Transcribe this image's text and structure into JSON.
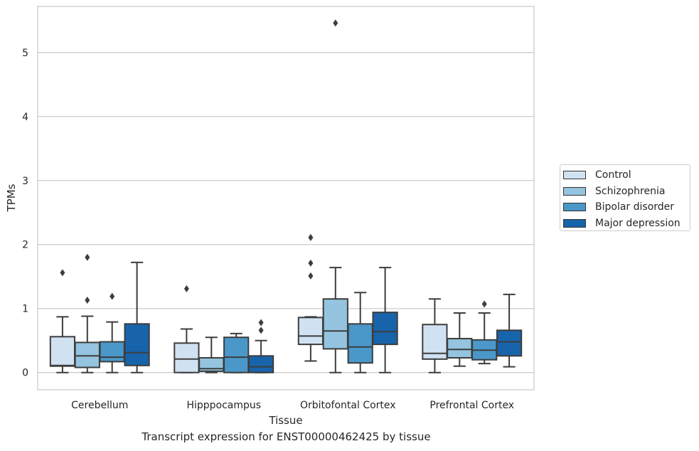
{
  "chart_data": {
    "type": "box",
    "caption": "Transcript expression for ENST00000462425 by tissue",
    "xlabel": "Tissue",
    "ylabel": "TPMs",
    "ylim": [
      -0.27,
      5.72
    ],
    "yticks": [
      0,
      1,
      2,
      3,
      4,
      5
    ],
    "ytick_labels": [
      "0",
      "1",
      "2",
      "3",
      "4",
      "5"
    ],
    "grid": "horizontal",
    "legend_position": "right",
    "categories": [
      "Cerebellum",
      "Hipppocampus",
      "Orbitofontal Cortex",
      "Prefrontal Cortex"
    ],
    "series": [
      {
        "name": "Control",
        "color": "#d0e1f2",
        "boxes": [
          {
            "whislo": 0.0,
            "q1": 0.1,
            "med": 0.11,
            "q3": 0.56,
            "whishi": 0.87,
            "fliers": [
              1.56
            ]
          },
          {
            "whislo": 0.0,
            "q1": 0.0,
            "med": 0.21,
            "q3": 0.46,
            "whishi": 0.68,
            "fliers": [
              1.31
            ]
          },
          {
            "whislo": 0.18,
            "q1": 0.44,
            "med": 0.57,
            "q3": 0.86,
            "whishi": 0.87,
            "fliers": [
              1.51,
              1.71,
              2.11
            ]
          },
          {
            "whislo": 0.0,
            "q1": 0.21,
            "med": 0.3,
            "q3": 0.75,
            "whishi": 1.15,
            "fliers": []
          }
        ]
      },
      {
        "name": "Schizophrenia",
        "color": "#94c4df",
        "boxes": [
          {
            "whislo": 0.0,
            "q1": 0.08,
            "med": 0.26,
            "q3": 0.47,
            "whishi": 0.88,
            "fliers": [
              1.13,
              1.8
            ]
          },
          {
            "whislo": 0.0,
            "q1": 0.02,
            "med": 0.06,
            "q3": 0.23,
            "whishi": 0.55,
            "fliers": []
          },
          {
            "whislo": 0.0,
            "q1": 0.37,
            "med": 0.65,
            "q3": 1.15,
            "whishi": 1.64,
            "fliers": [
              5.46
            ]
          },
          {
            "whislo": 0.1,
            "q1": 0.23,
            "med": 0.36,
            "q3": 0.53,
            "whishi": 0.93,
            "fliers": []
          }
        ]
      },
      {
        "name": "Bipolar disorder",
        "color": "#4a98c9",
        "boxes": [
          {
            "whislo": 0.0,
            "q1": 0.17,
            "med": 0.24,
            "q3": 0.48,
            "whishi": 0.79,
            "fliers": [
              1.19
            ]
          },
          {
            "whislo": 0.0,
            "q1": 0.0,
            "med": 0.24,
            "q3": 0.55,
            "whishi": 0.61,
            "fliers": []
          },
          {
            "whislo": 0.0,
            "q1": 0.15,
            "med": 0.4,
            "q3": 0.76,
            "whishi": 1.25,
            "fliers": []
          },
          {
            "whislo": 0.14,
            "q1": 0.2,
            "med": 0.35,
            "q3": 0.51,
            "whishi": 0.93,
            "fliers": [
              1.07
            ]
          }
        ]
      },
      {
        "name": "Major depression",
        "color": "#1764ab",
        "boxes": [
          {
            "whislo": 0.0,
            "q1": 0.11,
            "med": 0.31,
            "q3": 0.76,
            "whishi": 1.72,
            "fliers": []
          },
          {
            "whislo": 0.0,
            "q1": 0.0,
            "med": 0.09,
            "q3": 0.26,
            "whishi": 0.5,
            "fliers": [
              0.66,
              0.78
            ]
          },
          {
            "whislo": 0.0,
            "q1": 0.44,
            "med": 0.64,
            "q3": 0.94,
            "whishi": 1.64,
            "fliers": []
          },
          {
            "whislo": 0.09,
            "q1": 0.26,
            "med": 0.48,
            "q3": 0.66,
            "whishi": 1.22,
            "fliers": []
          }
        ]
      }
    ]
  }
}
